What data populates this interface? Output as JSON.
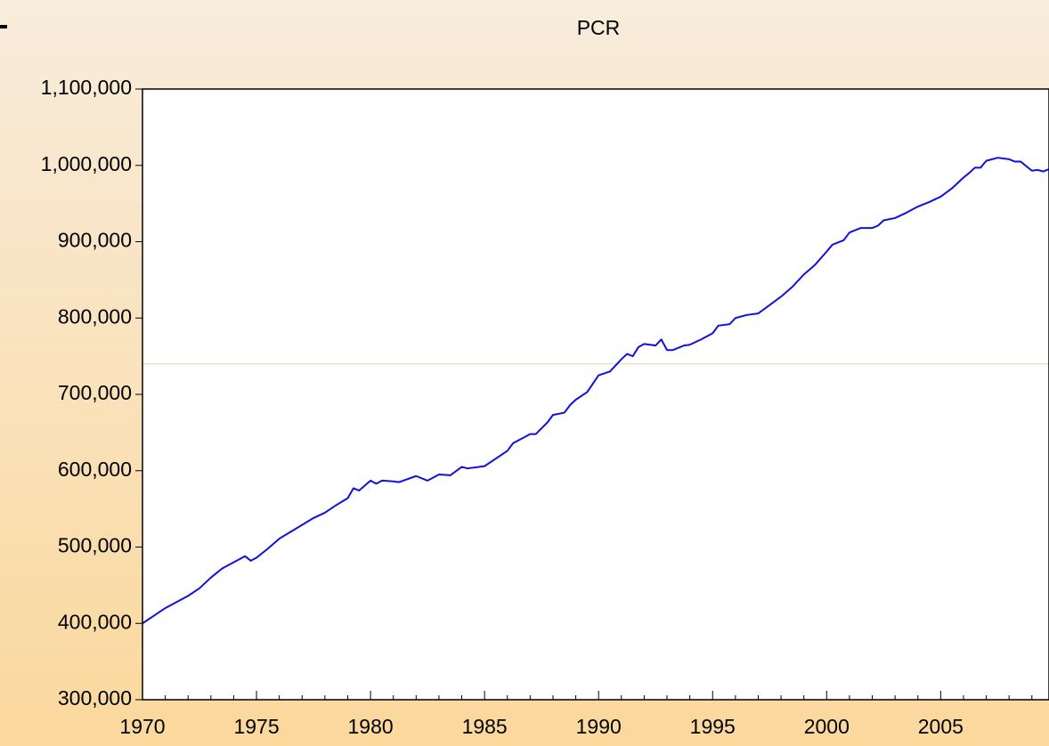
{
  "chart_data": {
    "type": "line",
    "title": "PCR",
    "x": [
      1970,
      1970.5,
      1971,
      1971.5,
      1972,
      1972.5,
      1973,
      1973.5,
      1974,
      1974.5,
      1974.75,
      1975,
      1975.5,
      1976,
      1976.5,
      1977,
      1977.5,
      1978,
      1978.5,
      1979,
      1979.25,
      1979.5,
      1980,
      1980.25,
      1980.5,
      1981,
      1981.25,
      1982,
      1982.5,
      1983,
      1983.5,
      1984,
      1984.25,
      1985,
      1985.5,
      1986,
      1986.25,
      1987,
      1987.25,
      1987.75,
      1988,
      1988.5,
      1988.75,
      1989,
      1989.5,
      1990,
      1990.5,
      1991,
      1991.25,
      1991.5,
      1991.75,
      1992,
      1992.5,
      1992.75,
      1993,
      1993.25,
      1993.75,
      1994,
      1994.5,
      1995,
      1995.25,
      1995.75,
      1996,
      1996.5,
      1997,
      1997.5,
      1998,
      1998.5,
      1999,
      1999.5,
      2000,
      2000.25,
      2000.75,
      2001,
      2001.5,
      2002,
      2002.25,
      2002.5,
      2003,
      2003.5,
      2004,
      2004.5,
      2005,
      2005.5,
      2006,
      2006.25,
      2006.5,
      2006.75,
      2007,
      2007.5,
      2008,
      2008.25,
      2008.5,
      2009,
      2009.25,
      2009.5,
      2009.75
    ],
    "series": [
      {
        "name": "PCR",
        "color": "#1010e0",
        "values": [
          400000,
          410000,
          420000,
          428000,
          436000,
          446000,
          460000,
          472000,
          480000,
          488000,
          482000,
          486000,
          498000,
          511000,
          520000,
          529000,
          538000,
          545000,
          555000,
          564000,
          577000,
          574000,
          587000,
          583000,
          587000,
          586000,
          585000,
          593000,
          587000,
          595000,
          594000,
          605000,
          603000,
          606000,
          616000,
          626000,
          636000,
          648000,
          648000,
          663000,
          673000,
          676000,
          686000,
          693000,
          703000,
          725000,
          730000,
          746000,
          753000,
          750000,
          762000,
          766000,
          764000,
          772000,
          758000,
          758000,
          764000,
          765000,
          772000,
          780000,
          790000,
          792000,
          800000,
          804000,
          806000,
          817000,
          828000,
          841000,
          857000,
          870000,
          887000,
          896000,
          902000,
          912000,
          918000,
          918000,
          921000,
          928000,
          931000,
          938000,
          946000,
          952000,
          959000,
          970000,
          984000,
          990000,
          997000,
          997000,
          1006000,
          1010000,
          1008000,
          1005000,
          1005000,
          993000,
          994000,
          992000,
          995000
        ]
      }
    ],
    "reference_line": {
      "value": 740000,
      "color": "#d8d8b0"
    },
    "xlim": [
      1970,
      2009.75
    ],
    "xticks": [
      1970,
      1975,
      1980,
      1985,
      1990,
      1995,
      2000,
      2005
    ],
    "minor_xticks": [
      1971,
      1972,
      1973,
      1974,
      1976,
      1977,
      1978,
      1979,
      1981,
      1982,
      1983,
      1984,
      1986,
      1987,
      1988,
      1989,
      1991,
      1992,
      1993,
      1994,
      1996,
      1997,
      1998,
      1999,
      2001,
      2002,
      2003,
      2004,
      2006,
      2007,
      2008,
      2009
    ],
    "ylim": [
      300000,
      1100000
    ],
    "yticks": [
      {
        "value": 300000,
        "label": "300,000"
      },
      {
        "value": 400000,
        "label": "400,000"
      },
      {
        "value": 500000,
        "label": "500,000"
      },
      {
        "value": 600000,
        "label": "600,000"
      },
      {
        "value": 700000,
        "label": "700,000"
      },
      {
        "value": 800000,
        "label": "800,000"
      },
      {
        "value": 900000,
        "label": "900,000"
      },
      {
        "value": 1000000,
        "label": "1,000,000"
      },
      {
        "value": 1100000,
        "label": "1,100,000"
      }
    ],
    "grid": false
  }
}
